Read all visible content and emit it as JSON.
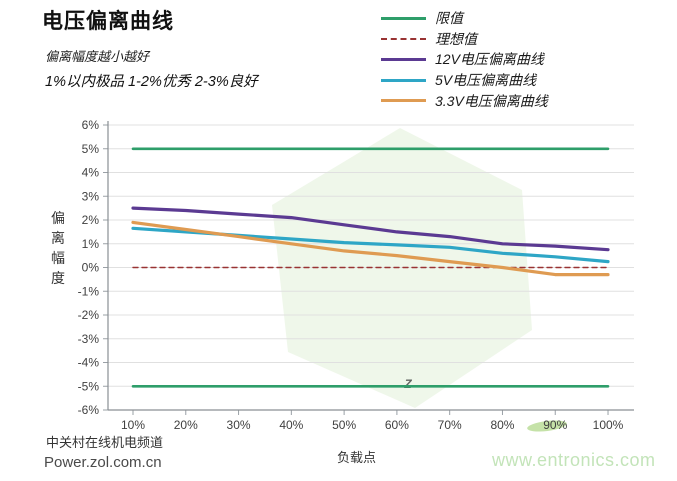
{
  "header": {
    "title": "电压偏离曲线",
    "subtitle1": "偏离幅度越小越好",
    "subtitle2": "1%以内极品 1-2%优秀  2-3%良好"
  },
  "legend": {
    "items": [
      {
        "label": "限值",
        "color": "#2E9E6A",
        "dash": false
      },
      {
        "label": "理想值",
        "color": "#993333",
        "dash": true
      },
      {
        "label": "12V电压偏离曲线",
        "color": "#5B3A92",
        "dash": false
      },
      {
        "label": "5V电压偏离曲线",
        "color": "#2EA6C6",
        "dash": false
      },
      {
        "label": "3.3V电压偏离曲线",
        "color": "#DF9B52",
        "dash": false
      }
    ]
  },
  "chart_data": {
    "type": "line",
    "x": [
      10,
      20,
      30,
      40,
      50,
      60,
      70,
      80,
      90,
      100
    ],
    "x_tick_labels": [
      "10%",
      "20%",
      "30%",
      "40%",
      "50%",
      "60%",
      "70%",
      "80%",
      "90%",
      "100%"
    ],
    "ytick_labels": [
      "6%",
      "5%",
      "4%",
      "3%",
      "2%",
      "1%",
      "0%",
      "-1%",
      "-2%",
      "-3%",
      "-4%",
      "-5%",
      "-6%"
    ],
    "ylim": [
      -6,
      6
    ],
    "xlabel": "负载点",
    "ylabel": "偏离幅度",
    "grid": "horizontal",
    "legend_position": "top-right",
    "series": [
      {
        "name": "限值(上限)",
        "color": "#2E9E6A",
        "width": 2.6,
        "dash": null,
        "values": [
          5,
          5,
          5,
          5,
          5,
          5,
          5,
          5,
          5,
          5
        ]
      },
      {
        "name": "限值(下限)",
        "color": "#2E9E6A",
        "width": 2.6,
        "dash": null,
        "values": [
          -5,
          -5,
          -5,
          -5,
          -5,
          -5,
          -5,
          -5,
          -5,
          -5
        ]
      },
      {
        "name": "理想值",
        "color": "#993333",
        "width": 1.4,
        "dash": "5,4",
        "values": [
          0,
          0,
          0,
          0,
          0,
          0,
          0,
          0,
          0,
          0
        ]
      },
      {
        "name": "12V电压偏离曲线",
        "color": "#5B3A92",
        "width": 3.2,
        "dash": null,
        "values": [
          2.5,
          2.4,
          2.25,
          2.1,
          1.8,
          1.5,
          1.3,
          1.0,
          0.9,
          0.75
        ]
      },
      {
        "name": "5V电压偏离曲线",
        "color": "#2EA6C6",
        "width": 3.2,
        "dash": null,
        "values": [
          1.65,
          1.5,
          1.35,
          1.2,
          1.05,
          0.95,
          0.85,
          0.6,
          0.45,
          0.25
        ]
      },
      {
        "name": "3.3V电压偏离曲线",
        "color": "#DF9B52",
        "width": 3.2,
        "dash": null,
        "values": [
          1.9,
          1.6,
          1.3,
          1.0,
          0.7,
          0.5,
          0.25,
          0.0,
          -0.3,
          -0.3
        ]
      }
    ]
  },
  "footer": {
    "channel": "中关村在线机电频道",
    "site": "Power.zol.com.cn",
    "watermark": "www.entronics.com"
  }
}
